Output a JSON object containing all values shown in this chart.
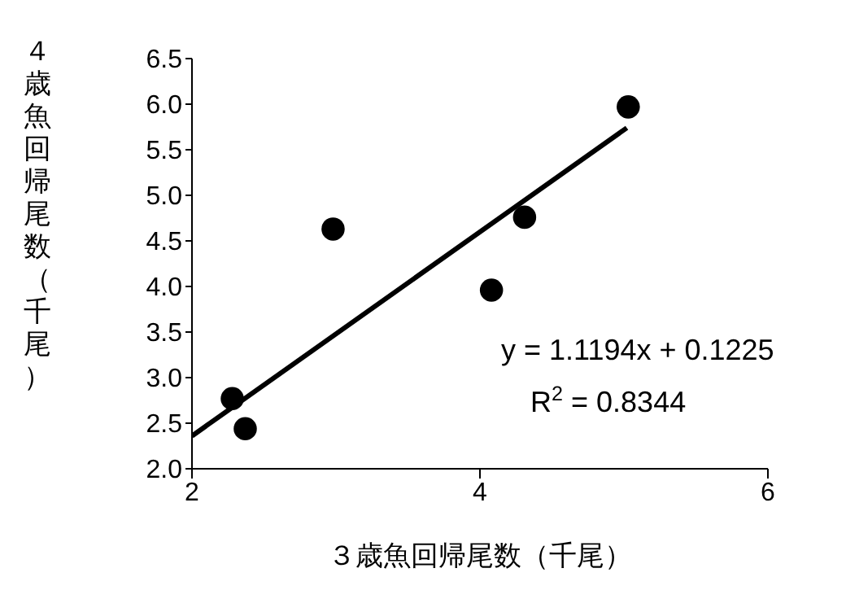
{
  "chart_data": {
    "type": "scatter",
    "xlabel": "３歳魚回帰尾数（千尾）",
    "ylabel": "４歳魚回帰尾数（千尾）",
    "xlim": [
      2,
      6
    ],
    "xticks": [
      2,
      4,
      6
    ],
    "ylim": [
      2,
      6.5
    ],
    "yticks": [
      {
        "value": 2,
        "label": "2.0"
      },
      {
        "value": 2.5,
        "label": "2.5"
      },
      {
        "value": 3,
        "label": "3.0"
      },
      {
        "value": 3.5,
        "label": "3.5"
      },
      {
        "value": 4,
        "label": "4.0"
      },
      {
        "value": 4.5,
        "label": "4.5"
      },
      {
        "value": 5,
        "label": "5.0"
      },
      {
        "value": 5.5,
        "label": "5.5"
      },
      {
        "value": 6,
        "label": "6.0"
      },
      {
        "value": 6.5,
        "label": "6.5"
      }
    ],
    "grid": false,
    "marker": "circle",
    "series": [
      {
        "type": "scatter",
        "color": "#000000",
        "x": [
          5.03,
          2.98,
          4.31,
          4.08,
          2.28,
          2.37
        ],
        "values": [
          5.97,
          4.63,
          4.76,
          3.96,
          2.77,
          2.44
        ]
      },
      {
        "type": "line",
        "color": "#000000",
        "marker": "none",
        "x": [
          2,
          5.02
        ],
        "values": [
          2.36,
          5.74
        ]
      }
    ],
    "annotations": [
      "y = 1.1194x + 0.1225",
      "R$^{2}$ = 0.8344"
    ]
  }
}
